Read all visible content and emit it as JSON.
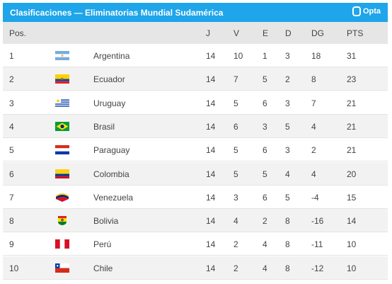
{
  "header": {
    "title": "Clasificaciones — Eliminatorias Mundial Sudamérica",
    "logo": "Opta"
  },
  "table": {
    "columns": [
      "Pos.",
      "J",
      "V",
      "E",
      "D",
      "DG",
      "PTS"
    ],
    "rows": [
      [
        1,
        "Argentina",
        14,
        10,
        1,
        3,
        18,
        31
      ],
      [
        2,
        "Ecuador",
        14,
        7,
        5,
        2,
        8,
        23
      ],
      [
        3,
        "Uruguay",
        14,
        5,
        6,
        3,
        7,
        21
      ],
      [
        4,
        "Brasil",
        14,
        6,
        3,
        5,
        4,
        21
      ],
      [
        5,
        "Paraguay",
        14,
        5,
        6,
        3,
        2,
        21
      ],
      [
        6,
        "Colombia",
        14,
        5,
        5,
        4,
        4,
        20
      ],
      [
        7,
        "Venezuela",
        14,
        3,
        6,
        5,
        -4,
        15
      ],
      [
        8,
        "Bolivia",
        14,
        4,
        2,
        8,
        -16,
        14
      ],
      [
        9,
        "Perú",
        14,
        2,
        4,
        8,
        -11,
        10
      ],
      [
        10,
        "Chile",
        14,
        2,
        4,
        8,
        -12,
        10
      ]
    ]
  }
}
